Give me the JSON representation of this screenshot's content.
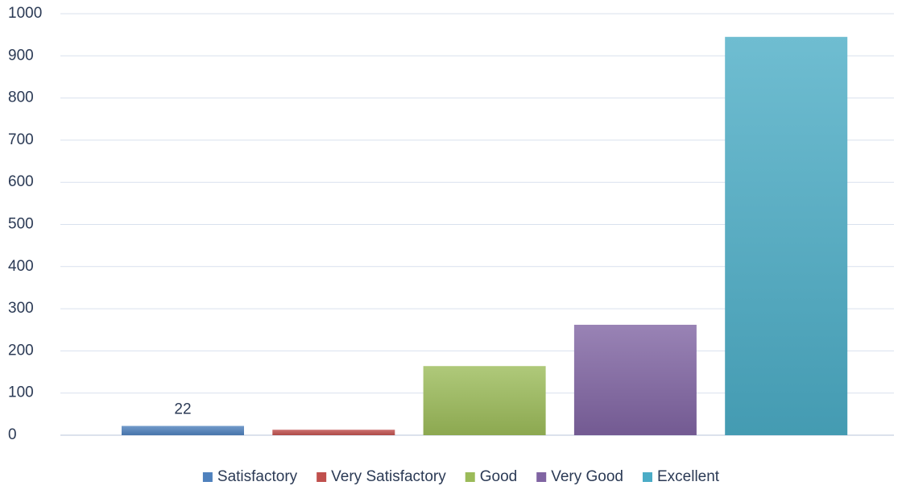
{
  "chart_data": {
    "type": "bar",
    "categories": [
      null
    ],
    "series": [
      {
        "name": "Satisfactory",
        "color": "#4f81bd",
        "values": [
          22
        ],
        "data_labels": true
      },
      {
        "name": "Very Satisfactory",
        "color": "#c0504d",
        "values": [
          13
        ]
      },
      {
        "name": "Good",
        "color": "#9bbb59",
        "values": [
          164
        ]
      },
      {
        "name": "Very Good",
        "color": "#8064a2",
        "values": [
          262
        ]
      },
      {
        "name": "Excellent",
        "color": "#4bacc6",
        "values": [
          945
        ]
      }
    ],
    "ylim": [
      0,
      1000
    ],
    "yticks": [
      0,
      100,
      200,
      300,
      400,
      500,
      600,
      700,
      800,
      900,
      1000
    ],
    "grid": true,
    "legend": "bottom"
  }
}
